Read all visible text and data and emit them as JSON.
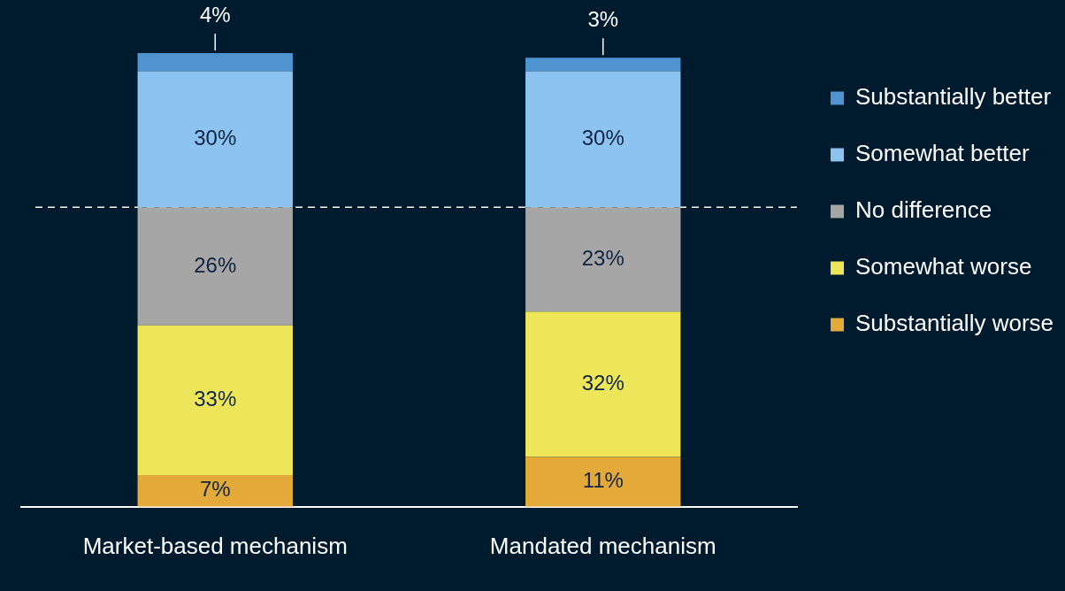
{
  "chart_data": {
    "type": "bar",
    "stacked": true,
    "categories": [
      "Market-based mechanism",
      "Mandated mechanism"
    ],
    "series": [
      {
        "name": "Substantially worse",
        "color": "#e3aa3a",
        "values": [
          7,
          11
        ],
        "value_labels": [
          "7%",
          "11%"
        ]
      },
      {
        "name": "Somewhat worse",
        "color": "#ede65a",
        "values": [
          33,
          32
        ],
        "value_labels": [
          "33%",
          "32%"
        ]
      },
      {
        "name": "No difference",
        "color": "#a6a6a6",
        "values": [
          26,
          23
        ],
        "value_labels": [
          "26%",
          "23%"
        ]
      },
      {
        "name": "Somewhat better",
        "color": "#8dc3f0",
        "values": [
          30,
          30
        ],
        "value_labels": [
          "30%",
          "30%"
        ]
      },
      {
        "name": "Substantially better",
        "color": "#4f93d0",
        "values": [
          4,
          3
        ],
        "value_labels": [
          "4%",
          "3%"
        ]
      }
    ],
    "tick_labels": "x",
    "legend": "right",
    "grid": false,
    "ref_lines": [
      {
        "axis": "y",
        "value": 66,
        "line_style": "dashed",
        "color": "#ffffff"
      }
    ]
  }
}
